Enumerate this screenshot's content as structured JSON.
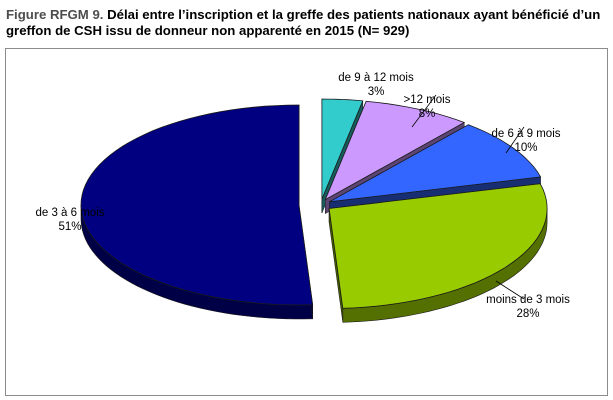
{
  "figure": {
    "title_lead": "Figure RFGM 9. ",
    "title_main": "Délai entre l’inscription et la greffe des patients nationaux ayant bénéficié d’un greffon de CSH issu de donneur non apparenté en 2015 (N= 929)"
  },
  "chart_data": {
    "type": "pie",
    "title": "Délai entre l’inscription et la greffe des patients nationaux ayant bénéficié d’un greffon de CSH issu de donneur non apparenté en 2015 (N= 929)",
    "style": "3d-exploded",
    "slices": [
      {
        "label": "de 9 à 12 mois",
        "value": 3,
        "display": "3%",
        "color": "#33cccc"
      },
      {
        "label": ">12 mois",
        "value": 8,
        "display": "8%",
        "color": "#cc99ff"
      },
      {
        "label": "de 6 à 9 mois",
        "value": 10,
        "display": "10%",
        "color": "#3366ff"
      },
      {
        "label": "moins de 3 mois",
        "value": 28,
        "display": "28%",
        "color": "#99cc00"
      },
      {
        "label": "de 3 à 6 mois",
        "value": 51,
        "display": "51%",
        "color": "#000080"
      }
    ]
  }
}
